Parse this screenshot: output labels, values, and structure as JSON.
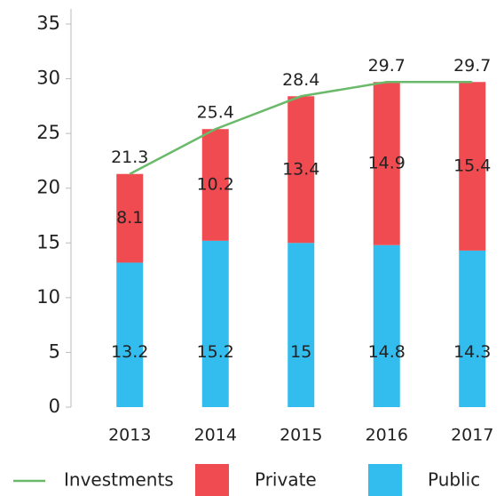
{
  "chart_data": {
    "type": "bar",
    "stacked": true,
    "categories": [
      "2013",
      "2014",
      "2015",
      "2016",
      "2017"
    ],
    "series": [
      {
        "name": "Investments",
        "type": "line",
        "color": "#6bb96b",
        "values": [
          21.3,
          25.4,
          28.4,
          29.7,
          29.7
        ]
      },
      {
        "name": "Private",
        "color": "#ef4b50",
        "values": [
          8.1,
          10.2,
          13.4,
          14.9,
          15.4
        ]
      },
      {
        "name": "Public",
        "color": "#33bdef",
        "values": [
          13.2,
          15.2,
          15,
          14.8,
          14.3
        ]
      }
    ],
    "ylim": [
      0,
      35
    ],
    "yticks": [
      0,
      5,
      10,
      15,
      20,
      25,
      30,
      35
    ],
    "grid": false,
    "legend": "bottom"
  }
}
